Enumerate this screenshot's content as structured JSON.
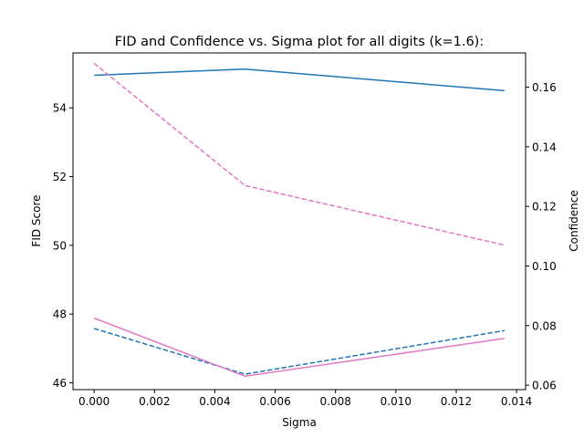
{
  "chart_data": {
    "type": "line",
    "title": "FID and Confidence vs. Sigma plot for all digits (k=1.6):",
    "xlabel": "Sigma",
    "ylabel_left": "FID Score",
    "ylabel_right": "Confidence",
    "xlim": [
      -0.0007,
      0.0143
    ],
    "ylim_left": [
      45.8,
      55.6
    ],
    "ylim_right": [
      0.0585,
      0.1715
    ],
    "x_ticks": [
      0.0,
      0.002,
      0.004,
      0.006,
      0.008,
      0.01,
      0.012,
      0.014
    ],
    "x_tick_labels": [
      "0.000",
      "0.002",
      "0.004",
      "0.006",
      "0.008",
      "0.010",
      "0.012",
      "0.014"
    ],
    "y_left_ticks": [
      46,
      48,
      50,
      52,
      54
    ],
    "y_left_tick_labels": [
      "46",
      "48",
      "50",
      "52",
      "54"
    ],
    "y_right_ticks": [
      0.06,
      0.08,
      0.1,
      0.12,
      0.14,
      0.16
    ],
    "y_right_tick_labels": [
      "0.06",
      "0.08",
      "0.10",
      "0.12",
      "0.14",
      "0.16"
    ],
    "grid": false,
    "x": [
      0.0,
      0.005,
      0.0136
    ],
    "series": [
      {
        "axis": "left",
        "color": "#1f77b4",
        "style": "solid",
        "values": [
          54.95,
          55.13,
          54.5
        ]
      },
      {
        "axis": "left",
        "color": "#1f77b4",
        "style": "dashed",
        "values": [
          47.58,
          46.25,
          47.52
        ]
      },
      {
        "axis": "right",
        "color": "#e377c2",
        "style": "solid",
        "values": [
          0.0825,
          0.063,
          0.0757
        ]
      },
      {
        "axis": "right",
        "color": "#e377c2",
        "style": "dashed",
        "values": [
          0.168,
          0.127,
          0.107
        ]
      }
    ]
  }
}
